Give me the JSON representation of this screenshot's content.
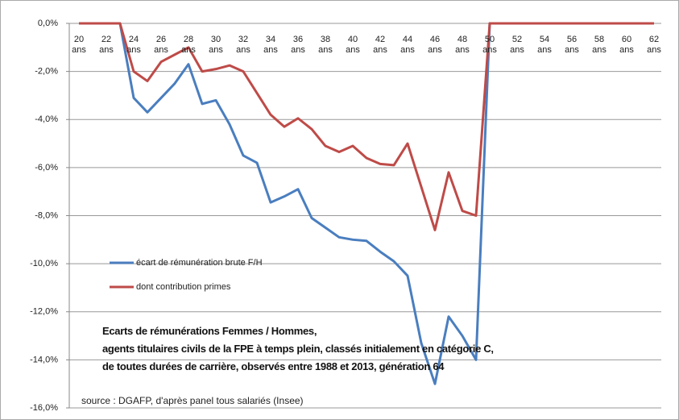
{
  "chart_data": {
    "type": "line",
    "categories": [
      "20 ans",
      null,
      "22 ans",
      null,
      "24 ans",
      null,
      "26 ans",
      null,
      "28 ans",
      null,
      "30 ans",
      null,
      "32 ans",
      null,
      "34 ans",
      null,
      "36 ans",
      null,
      "38 ans",
      null,
      "40 ans",
      null,
      "42 ans",
      null,
      "44 ans",
      null,
      "46 ans",
      null,
      "48 ans",
      null,
      "50 ans",
      null,
      "52 ans",
      null,
      "54 ans",
      null,
      "56 ans",
      null,
      "58 ans",
      null,
      "60 ans",
      null,
      "62 ans"
    ],
    "series": [
      {
        "name": "écart de rémunération brute F/H",
        "color": "#4a7ebf",
        "values": [
          0,
          0,
          0,
          0,
          -3.1,
          -3.7,
          -3.1,
          -2.5,
          -1.7,
          -3.35,
          -3.2,
          -4.2,
          -5.5,
          -5.8,
          -7.45,
          -7.2,
          -6.9,
          -8.1,
          -8.5,
          -8.9,
          -9.0,
          -9.05,
          -9.5,
          -9.9,
          -10.5,
          -13.3,
          -15.0,
          -12.2,
          -13.0,
          -14.0,
          0,
          0,
          0,
          0,
          0,
          0,
          0,
          0,
          0,
          0,
          0,
          0,
          0
        ]
      },
      {
        "name": "dont contribution primes",
        "color": "#be4b48",
        "values": [
          0,
          0,
          0,
          0,
          -2.0,
          -2.4,
          -1.6,
          -1.3,
          -1.0,
          -2.0,
          -1.9,
          -1.75,
          -2.0,
          -2.9,
          -3.8,
          -4.3,
          -3.95,
          -4.4,
          -5.1,
          -5.35,
          -5.1,
          -5.6,
          -5.85,
          -5.9,
          -5.0,
          -6.8,
          -8.6,
          -6.2,
          -7.8,
          -8.0,
          0,
          0,
          0,
          0,
          0,
          0,
          0,
          0,
          0,
          0,
          0,
          0,
          0
        ]
      }
    ],
    "ylim": [
      -16,
      0
    ],
    "yticks": [
      {
        "value": 0,
        "label": "0,0%"
      },
      {
        "value": -2,
        "label": "-2,0%"
      },
      {
        "value": -4,
        "label": "-4,0%"
      },
      {
        "value": -6,
        "label": "-6,0%"
      },
      {
        "value": -8,
        "label": "-8,0%"
      },
      {
        "value": -10,
        "label": "-10,0%"
      },
      {
        "value": -12,
        "label": "-12,0%"
      },
      {
        "value": -14,
        "label": "-14,0%"
      },
      {
        "value": -16,
        "label": "-16,0%"
      }
    ],
    "grid": true,
    "annotation": [
      "Ecarts de rémunérations Femmes / Hommes,",
      "agents titulaires civils de la FPE à temps plein, classés initialement en catégorie C,",
      "de toutes durées de carrière, observés entre 1988 et 2013,  génération 64"
    ],
    "source": "source : DGAFP, d'après panel tous salariés (Insee)"
  }
}
